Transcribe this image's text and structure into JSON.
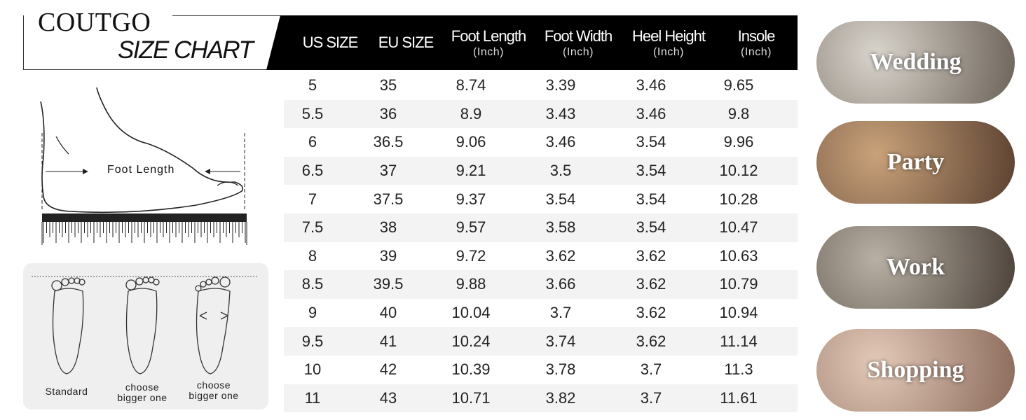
{
  "logo": {
    "brand": "COUTGO",
    "title": "SIZE CHART"
  },
  "table": {
    "columns": [
      {
        "title": "US SIZE",
        "unit": ""
      },
      {
        "title": "EU SIZE",
        "unit": ""
      },
      {
        "title": "Foot Length",
        "unit": "(Inch)"
      },
      {
        "title": "Foot Width",
        "unit": "(Inch)"
      },
      {
        "title": "Heel Height",
        "unit": "(Inch)"
      },
      {
        "title": "Insole",
        "unit": "(Inch)"
      }
    ],
    "rows": [
      [
        "5",
        "35",
        "8.74",
        "3.39",
        "3.46",
        "9.65"
      ],
      [
        "5.5",
        "36",
        "8.9",
        "3.43",
        "3.46",
        "9.8"
      ],
      [
        "6",
        "36.5",
        "9.06",
        "3.46",
        "3.54",
        "9.96"
      ],
      [
        "6.5",
        "37",
        "9.21",
        "3.5",
        "3.54",
        "10.12"
      ],
      [
        "7",
        "37.5",
        "9.37",
        "3.54",
        "3.54",
        "10.28"
      ],
      [
        "7.5",
        "38",
        "9.57",
        "3.58",
        "3.54",
        "10.47"
      ],
      [
        "8",
        "39",
        "9.72",
        "3.62",
        "3.62",
        "10.63"
      ],
      [
        "8.5",
        "39.5",
        "9.88",
        "3.66",
        "3.62",
        "10.79"
      ],
      [
        "9",
        "40",
        "10.04",
        "3.7",
        "3.62",
        "10.94"
      ],
      [
        "9.5",
        "41",
        "10.24",
        "3.74",
        "3.62",
        "11.14"
      ],
      [
        "10",
        "42",
        "10.39",
        "3.78",
        "3.7",
        "11.3"
      ],
      [
        "11",
        "43",
        "10.71",
        "3.82",
        "3.7",
        "11.61"
      ]
    ]
  },
  "diagram": {
    "foot_length_label": "Foot Length"
  },
  "fit": {
    "standard": "Standard",
    "bigger1": "choose bigger one",
    "bigger2": "choose bigger one"
  },
  "occasions": [
    {
      "label": "Wedding",
      "colors": [
        "#d9d4cc",
        "#6b6258"
      ]
    },
    {
      "label": "Party",
      "colors": [
        "#c9a27a",
        "#5a4030"
      ]
    },
    {
      "label": "Work",
      "colors": [
        "#b8b0a4",
        "#4a4038"
      ]
    },
    {
      "label": "Shopping",
      "colors": [
        "#e3c9b8",
        "#8a6a5a"
      ]
    }
  ]
}
